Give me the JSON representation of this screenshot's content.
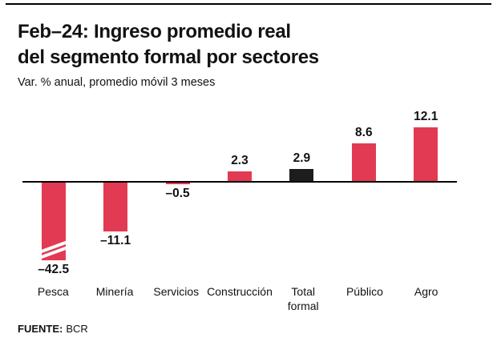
{
  "header": {
    "title_line1": "Feb–24: Ingreso promedio real",
    "title_line2": "del segmento formal por sectores",
    "subtitle": "Var. % anual, promedio móvil 3 meses"
  },
  "footer": {
    "source_label": "FUENTE:",
    "source_value": "BCR"
  },
  "colors": {
    "bar": "#e23a52",
    "highlight_bar": "#1d1d1b",
    "axis": "#000000"
  },
  "chart_data": {
    "type": "bar",
    "title": "Feb–24: Ingreso promedio real del segmento formal por sectores",
    "subtitle": "Var. % anual, promedio móvil 3 meses",
    "categories": [
      "Pesca",
      "Minería",
      "Servicios",
      "Construcción",
      "Total\nformal",
      "Público",
      "Agro"
    ],
    "values": [
      -42.5,
      -11.1,
      -0.5,
      2.3,
      2.9,
      8.6,
      12.1
    ],
    "value_labels": [
      "–42.5",
      "–11.1",
      "–0.5",
      "2.3",
      "2.9",
      "8.6",
      "12.1"
    ],
    "highlight_index": 4,
    "truncated_bar_index": 0,
    "baseline": 0,
    "grid": false,
    "legend": false,
    "ylim": [
      -45,
      14
    ],
    "source": "BCR"
  }
}
